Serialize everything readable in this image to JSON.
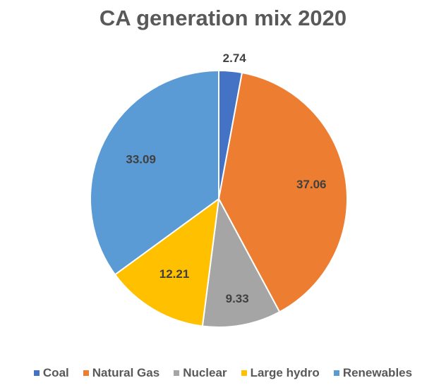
{
  "chart_data": {
    "type": "pie",
    "title": "CA generation mix 2020",
    "categories": [
      "Coal",
      "Natural Gas",
      "Nuclear",
      "Large hydro",
      "Renewables"
    ],
    "values": [
      2.74,
      37.06,
      9.33,
      12.21,
      33.09
    ],
    "data_labels": [
      "2.74",
      "37.06",
      "9.33",
      "12.21",
      "33.09"
    ],
    "colors": [
      "#4472C4",
      "#ED7D31",
      "#A5A5A5",
      "#FFC000",
      "#5B9BD5"
    ],
    "legend_position": "bottom",
    "start_angle": "12 o'clock",
    "direction": "clockwise"
  }
}
